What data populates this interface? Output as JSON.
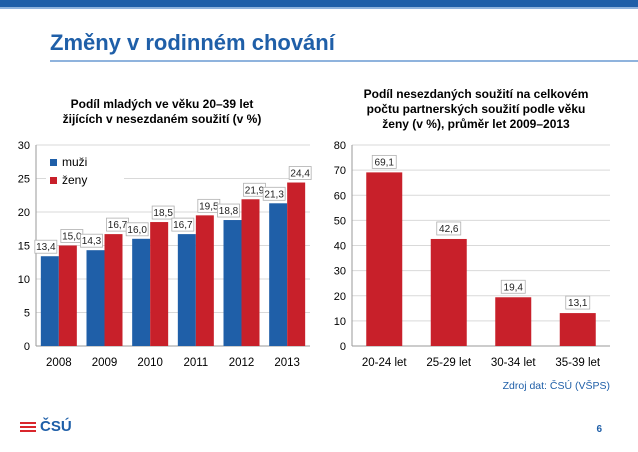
{
  "slide": {
    "title": "Změny v rodinném chování",
    "source": "Zdroj dat: ČSÚ (VŠPS)",
    "page_number": "6",
    "logo_text": "ČSÚ"
  },
  "colors": {
    "muzi": "#1f5fa8",
    "zeny": "#c8202a",
    "accent": "#1f5fa8"
  },
  "chart_data": [
    {
      "type": "bar",
      "title": [
        "Podíl mladých ve věku 20–39 let",
        "žijících v nesezdaném soužití (v %)"
      ],
      "categories": [
        "2008",
        "2009",
        "2010",
        "2011",
        "2012",
        "2013"
      ],
      "series": [
        {
          "name": "muži",
          "values": [
            13.4,
            14.3,
            16.0,
            16.7,
            18.8,
            21.3
          ],
          "labels": [
            "13,4",
            "14,3",
            "16,0",
            "16,7",
            "18,8",
            "21,3"
          ]
        },
        {
          "name": "ženy",
          "values": [
            15.0,
            16.7,
            18.5,
            19.5,
            21.9,
            24.4
          ],
          "labels": [
            "15,0",
            "16,7",
            "18,5",
            "19,5",
            "21,9",
            "24,4"
          ]
        }
      ],
      "ylim": [
        0,
        30
      ],
      "yticks": [
        "0",
        "5",
        "10",
        "15",
        "20",
        "25",
        "30"
      ],
      "grid": true,
      "legend": "top-left"
    },
    {
      "type": "bar",
      "title": [
        "Podíl nesezdaných soužití na celkovém",
        "počtu partnerských soužití podle věku",
        "ženy (v %), průměr let 2009–2013"
      ],
      "categories": [
        "20-24 let",
        "25-29 let",
        "30-34 let",
        "35-39 let"
      ],
      "series": [
        {
          "values": [
            69.1,
            42.6,
            19.4,
            13.1
          ],
          "labels": [
            "69,1",
            "42,6",
            "19,4",
            "13,1"
          ]
        }
      ],
      "ylim": [
        0,
        80
      ],
      "yticks": [
        "0",
        "10",
        "20",
        "30",
        "40",
        "50",
        "60",
        "70",
        "80"
      ],
      "grid": true
    }
  ]
}
